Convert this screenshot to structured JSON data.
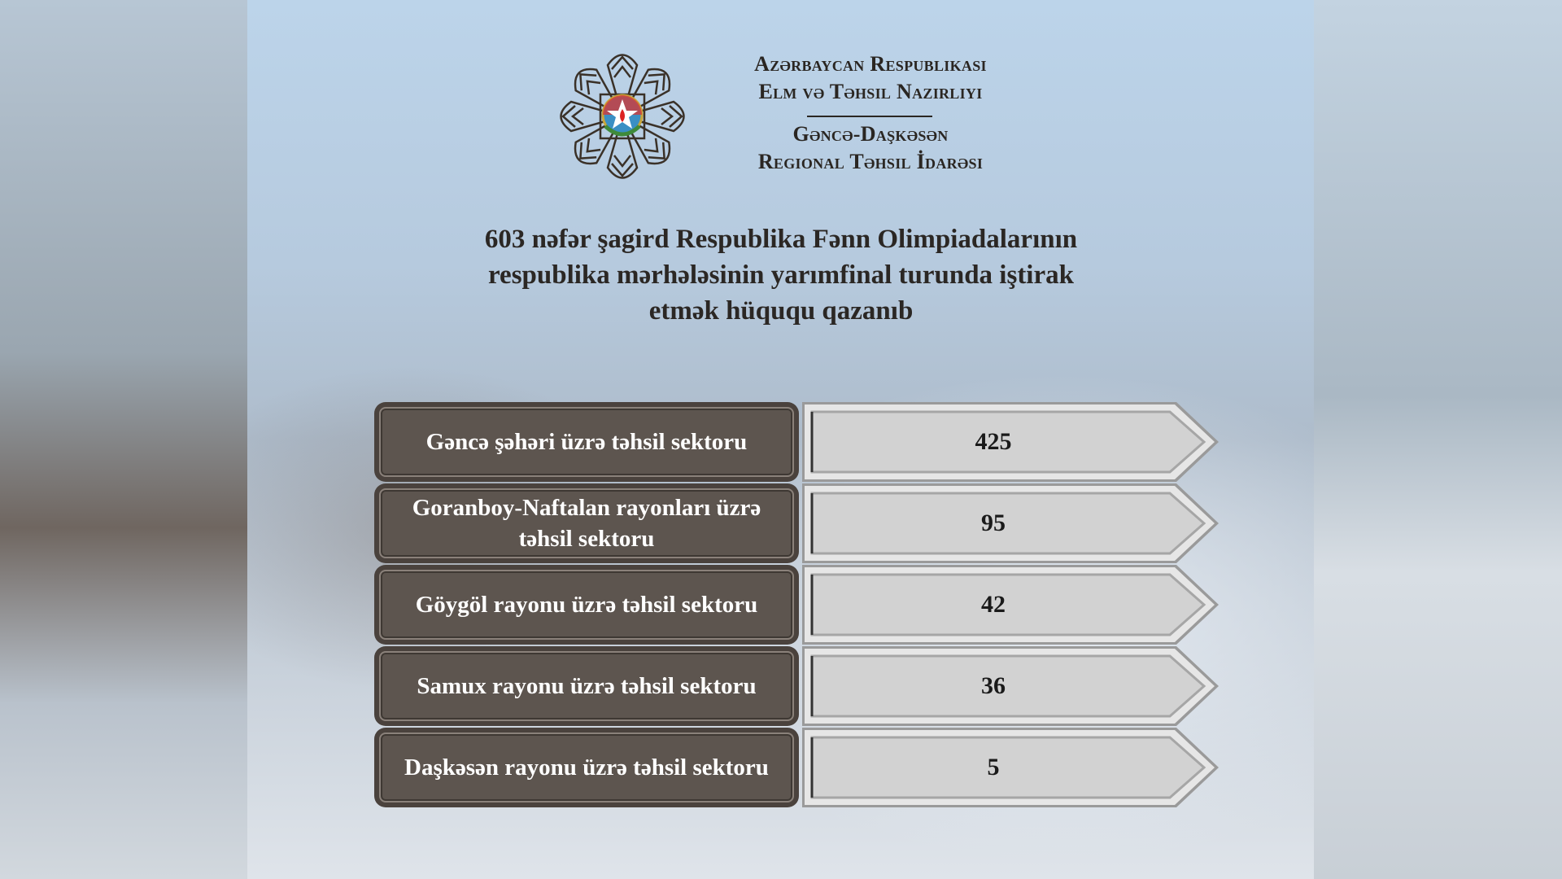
{
  "header": {
    "ministry_line1": "Azərbaycan Respublikası",
    "ministry_line2": "Elm və Təhsil Nazirliyi",
    "office_line1": "Gəncə-Daşkəsən",
    "office_line2": "Regional Təhsil İdarəsi"
  },
  "title": {
    "line1": "603 nəfər şagird Respublika Fənn Olimpiadalarının",
    "line2": "respublika mərhələsinin yarımfinal turunda iştirak",
    "line3": "etmək hüququ qazanıb"
  },
  "rows": [
    {
      "label": "Gəncə şəhəri üzrə təhsil sektoru",
      "value": "425"
    },
    {
      "label": "Goranboy-Naftalan rayonları üzrə təhsil sektoru",
      "value": "95"
    },
    {
      "label": "Göygöl rayonu üzrə təhsil sektoru",
      "value": "42"
    },
    {
      "label": "Samux rayonu üzrə təhsil sektoru",
      "value": "36"
    },
    {
      "label": "Daşkəsən rayonu üzrə təhsil sektoru",
      "value": "5"
    }
  ],
  "colors": {
    "label_box": "#5d554f",
    "value_box": "#d4d4d4",
    "text_dark": "#2a2622"
  }
}
